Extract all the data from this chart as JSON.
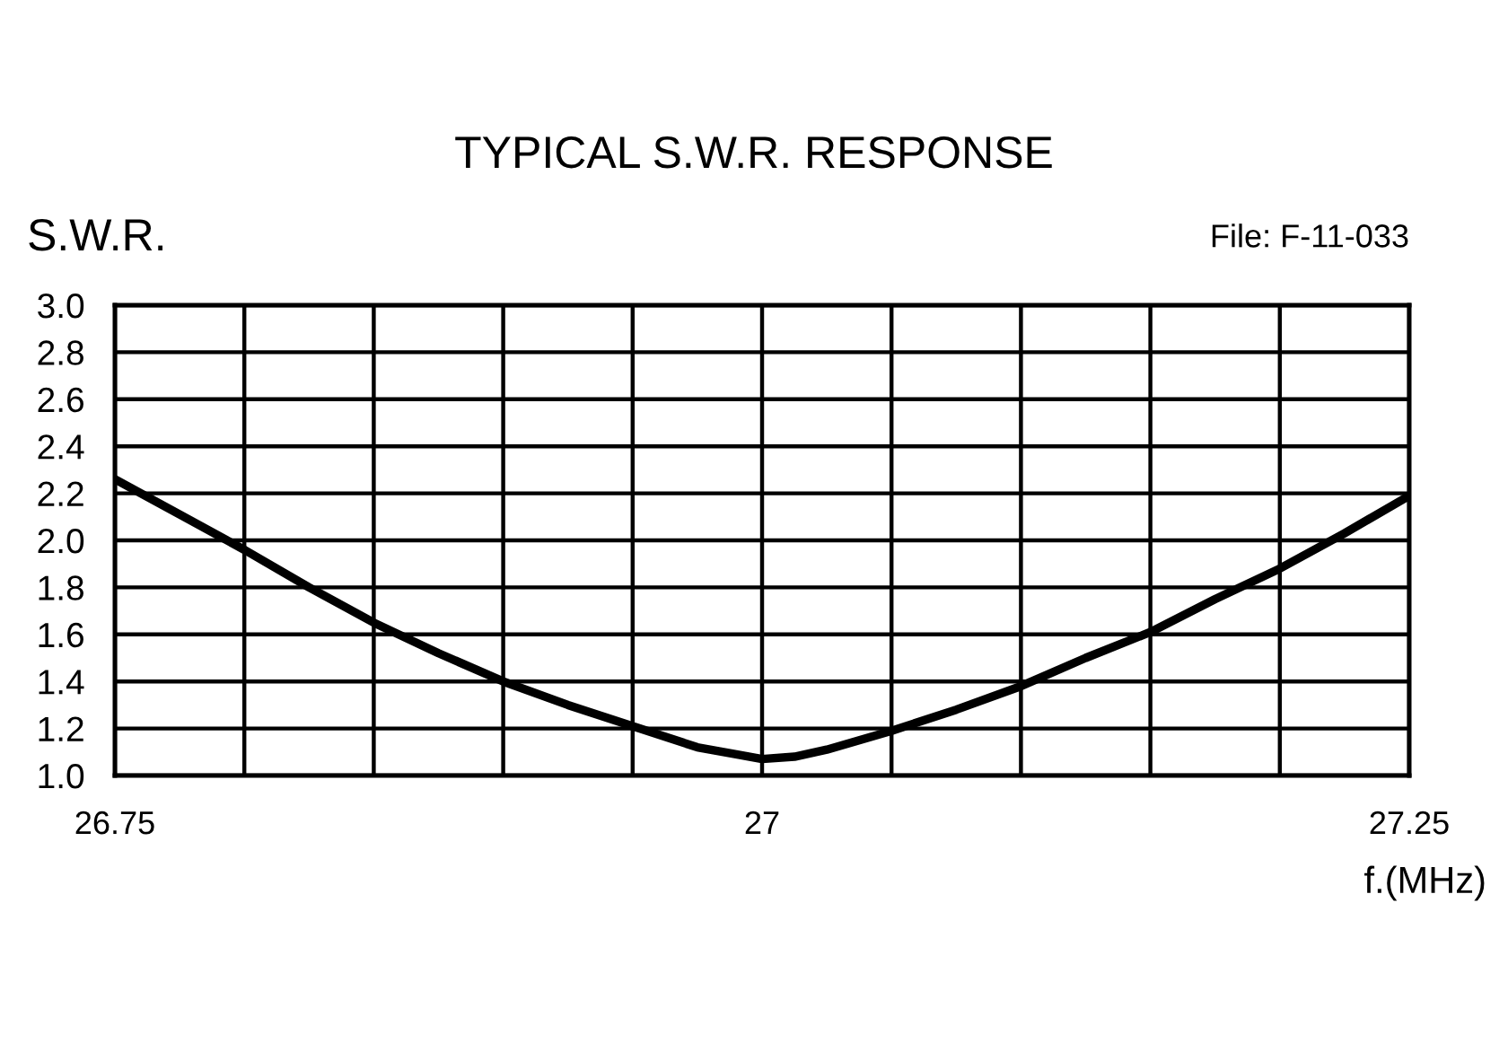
{
  "chart_data": {
    "type": "line",
    "title": "TYPICAL S.W.R. RESPONSE",
    "xlabel": "f.(MHz)",
    "ylabel": "S.W.R.",
    "annotations": [
      "File: F-11-033"
    ],
    "x": [
      26.75,
      26.775,
      26.8,
      26.825,
      26.85,
      26.875,
      26.9,
      26.925,
      26.95,
      26.975,
      26.99,
      27,
      27.0125,
      27.025,
      27.05,
      27.075,
      27.1,
      27.125,
      27.15,
      27.175,
      27.2,
      27.225,
      27.25
    ],
    "series": [
      {
        "color": "#000000",
        "values": [
          2.26,
          2.11,
          1.96,
          1.8,
          1.65,
          1.52,
          1.4,
          1.3,
          1.21,
          1.12,
          1.09,
          1.07,
          1.08,
          1.11,
          1.19,
          1.28,
          1.38,
          1.5,
          1.61,
          1.75,
          1.88,
          2.03,
          2.19
        ]
      }
    ],
    "xlim": [
      26.75,
      27.25
    ],
    "ylim": [
      1,
      3
    ],
    "xticks": [
      26.75,
      {
        "value": 26.8,
        "label": null
      },
      {
        "value": 26.85,
        "label": null
      },
      {
        "value": 26.9,
        "label": null
      },
      {
        "value": 26.95,
        "label": null
      },
      27,
      {
        "value": 27.05,
        "label": null
      },
      {
        "value": 27.1,
        "label": null
      },
      {
        "value": 27.15,
        "label": null
      },
      {
        "value": 27.2,
        "label": null
      },
      27.25
    ],
    "yticks": [
      {
        "value": 1,
        "label": "1.0"
      },
      1.2,
      1.4,
      1.6,
      1.8,
      {
        "value": 2,
        "label": "2.0"
      },
      2.2,
      2.4,
      2.6,
      2.8,
      {
        "value": 3,
        "label": "3.0"
      }
    ],
    "grid": true,
    "marker": "none",
    "line_style": "solid"
  }
}
